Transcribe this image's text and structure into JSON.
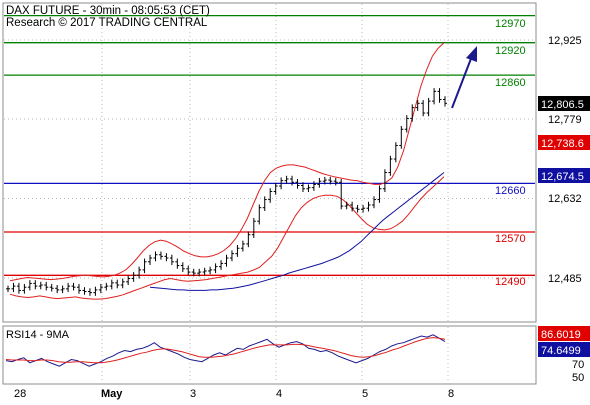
{
  "chart_data": [
    {
      "type": "candlestick",
      "title": "DAX FUTURE - 30min - 08:05:53 (CET)",
      "subtitle": "Research © 2017 TRADING CENTRAL",
      "x_tick_labels": [
        "28",
        "May",
        "3",
        "4",
        "5",
        "8"
      ],
      "y_tick_labels": [
        "12,925",
        "12,779",
        "12,632",
        "12,485"
      ],
      "ylim": [
        12420,
        12990
      ],
      "current_price": {
        "label": "12,806.5",
        "value": 12806.5
      },
      "indicator_labels": [
        {
          "label": "12,738.6",
          "value": 12738.6,
          "color": "#e00000"
        },
        {
          "label": "12,674.5",
          "value": 12674.5,
          "color": "#1010a0"
        }
      ],
      "levels": [
        {
          "label": "12970",
          "value": 12970,
          "color": "#008000"
        },
        {
          "label": "12920",
          "value": 12920,
          "color": "#008000"
        },
        {
          "label": "12860",
          "value": 12860,
          "color": "#008000"
        },
        {
          "label": "12660",
          "value": 12660,
          "color": "#1010c0"
        },
        {
          "label": "12570",
          "value": 12570,
          "color": "#e00000"
        },
        {
          "label": "12490",
          "value": 12490,
          "color": "#e00000"
        }
      ],
      "arrow": {
        "from_value": 12808,
        "to_value": 12915,
        "color": "#1a1a8c",
        "direction": "up"
      },
      "price_path": [
        12465,
        12470,
        12462,
        12468,
        12475,
        12470,
        12472,
        12468,
        12466,
        12463,
        12465,
        12470,
        12468,
        12462,
        12460,
        12458,
        12463,
        12468,
        12470,
        12476,
        12472,
        12478,
        12484,
        12490,
        12500,
        12515,
        12522,
        12528,
        12525,
        12522,
        12515,
        12508,
        12502,
        12496,
        12494,
        12496,
        12498,
        12500,
        12506,
        12512,
        12522,
        12530,
        12540,
        12548,
        12565,
        12590,
        12615,
        12630,
        12645,
        12655,
        12665,
        12668,
        12662,
        12656,
        12650,
        12652,
        12658,
        12664,
        12666,
        12664,
        12662,
        12618,
        12620,
        12614,
        12612,
        12614,
        12620,
        12630,
        12650,
        12680,
        12705,
        12730,
        12760,
        12780,
        12800,
        12808,
        12790,
        12812,
        12830,
        12815,
        12808
      ],
      "bb_upper": [
        12480,
        12482,
        12484,
        12486,
        12485,
        12484,
        12483,
        12482,
        12483,
        12484,
        12486,
        12488,
        12489,
        12490,
        12489,
        12488,
        12487,
        12488,
        12490,
        12494,
        12500,
        12510,
        12522,
        12535,
        12545,
        12552,
        12555,
        12553,
        12548,
        12542,
        12535,
        12530,
        12526,
        12524,
        12524,
        12526,
        12530,
        12536,
        12545,
        12558,
        12575,
        12595,
        12620,
        12645,
        12665,
        12680,
        12688,
        12692,
        12694,
        12694,
        12692,
        12690,
        12686,
        12682,
        12678,
        12675,
        12672,
        12670,
        12668,
        12666,
        12665,
        12662,
        12660,
        12658,
        12658,
        12662,
        12670,
        12690,
        12720,
        12760,
        12800,
        12840,
        12870,
        12895,
        12910,
        12920
      ],
      "bb_lower": [
        12455,
        12452,
        12450,
        12449,
        12450,
        12452,
        12450,
        12448,
        12447,
        12448,
        12449,
        12450,
        12448,
        12447,
        12446,
        12446,
        12447,
        12449,
        12451,
        12454,
        12458,
        12462,
        12466,
        12470,
        12474,
        12478,
        12482,
        12484,
        12482,
        12480,
        12479,
        12480,
        12481,
        12482,
        12484,
        12486,
        12488,
        12490,
        12492,
        12494,
        12496,
        12500,
        12505,
        12515,
        12525,
        12540,
        12560,
        12580,
        12600,
        12615,
        12625,
        12632,
        12636,
        12638,
        12638,
        12636,
        12630,
        12620,
        12608,
        12596,
        12585,
        12578,
        12575,
        12574,
        12576,
        12582,
        12590,
        12602,
        12616,
        12630,
        12642,
        12652,
        12662,
        12672
      ],
      "ma_line": [
        12468,
        12467,
        12466,
        12465,
        12464,
        12463,
        12463,
        12462,
        12462,
        12462,
        12462,
        12463,
        12463,
        12464,
        12465,
        12466,
        12468,
        12470,
        12472,
        12475,
        12478,
        12481,
        12484,
        12487,
        12490,
        12494,
        12497,
        12500,
        12503,
        12506,
        12509,
        12512,
        12516,
        12520,
        12524,
        12530,
        12536,
        12544,
        12552,
        12562,
        12572,
        12582,
        12592,
        12600,
        12608,
        12616,
        12624,
        12632,
        12640,
        12648,
        12656,
        12664,
        12672,
        12680
      ],
      "rsi": {
        "label": "RSI14 - 9MA",
        "levels": [
          "50",
          "70"
        ],
        "values_text": [
          "86.6019",
          "74.6499"
        ],
        "series": [
          40,
          38,
          42,
          45,
          36,
          40,
          44,
          38,
          34,
          30,
          36,
          42,
          40,
          35,
          30,
          34,
          38,
          44,
          48,
          54,
          58,
          56,
          60,
          62,
          66,
          72,
          64,
          60,
          56,
          52,
          46,
          42,
          40,
          38,
          44,
          50,
          54,
          50,
          56,
          62,
          60,
          66,
          70,
          74,
          78,
          70,
          64,
          68,
          72,
          74,
          70,
          62,
          60,
          56,
          58,
          54,
          48,
          44,
          40,
          36,
          40,
          44,
          50,
          56,
          60,
          66,
          70,
          72,
          76,
          80,
          84,
          82,
          86,
          80,
          74
        ],
        "ma": [
          42,
          41,
          41,
          41,
          40,
          40,
          41,
          41,
          40,
          38,
          37,
          37,
          38,
          38,
          37,
          36,
          36,
          37,
          39,
          41,
          44,
          47,
          50,
          53,
          55,
          58,
          60,
          61,
          60,
          58,
          56,
          53,
          50,
          47,
          46,
          46,
          47,
          48,
          50,
          52,
          55,
          58,
          61,
          64,
          66,
          68,
          68,
          68,
          68,
          69,
          69,
          68,
          66,
          64,
          62,
          60,
          58,
          55,
          52,
          49,
          47,
          46,
          47,
          49,
          52,
          55,
          59,
          62,
          66,
          70,
          74,
          77,
          80,
          81,
          80,
          78
        ]
      }
    }
  ]
}
